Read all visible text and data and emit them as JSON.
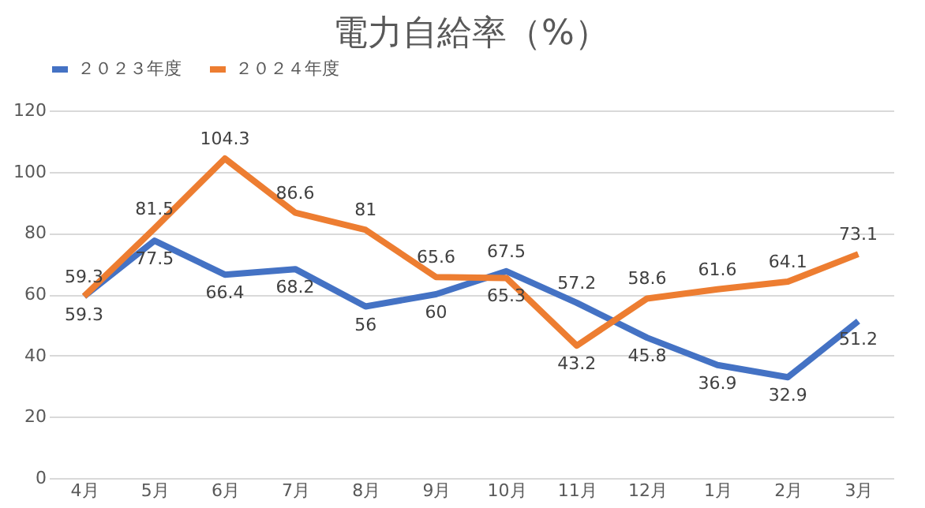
{
  "chart_data": {
    "type": "line",
    "title": "電力自給率（%）",
    "categories": [
      "4月",
      "5月",
      "6月",
      "7月",
      "8月",
      "9月",
      "10月",
      "11月",
      "12月",
      "1月",
      "2月",
      "3月"
    ],
    "series": [
      {
        "name": "２０２３年度",
        "color": "#4472c4",
        "values": [
          59.3,
          77.5,
          66.4,
          68.2,
          56,
          60,
          67.5,
          57.2,
          45.8,
          36.9,
          32.9,
          51.2
        ]
      },
      {
        "name": "２０２４年度",
        "color": "#ed7d31",
        "values": [
          59.3,
          81.5,
          104.3,
          86.6,
          81,
          65.6,
          65.3,
          43.2,
          58.6,
          61.6,
          64.1,
          73.1
        ]
      }
    ],
    "ylim": [
      0,
      120
    ],
    "yticks": [
      0,
      20,
      40,
      60,
      80,
      100,
      120
    ],
    "grid": "y",
    "legend": "top",
    "data_labels": true,
    "marker": "none",
    "line_style": "solid"
  }
}
